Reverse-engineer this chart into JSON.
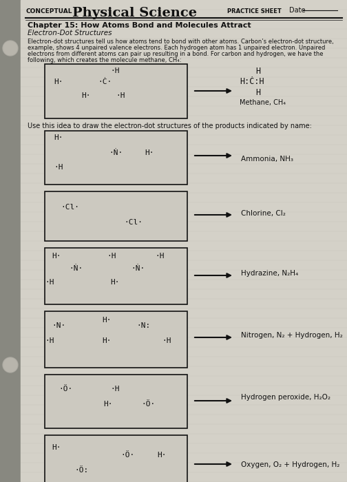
{
  "bg_color": "#c8c5bc",
  "page_color": "#d4d1c8",
  "box_color": "#ccc9c0",
  "box_edge": "#222222",
  "text_color": "#111111",
  "left_bar_color": "#555555",
  "title_conceptual": "CONCEPTUAL",
  "title_main": "Physical Science",
  "title_practice": "PRACTICE SHEET",
  "date_label": "Date",
  "chapter": "Chapter 15: How Atoms Bond and Molecules Attract",
  "subtitle": "Electron-Dot Structures",
  "body_text_line1": "Electron-dot structures tell us how atoms tend to bond with other atoms. Carbon’s electron-dot structure,",
  "body_text_line2": "example, shows 4 unpaired valence electrons. Each hydrogen atom has 1 unpaired electron. Unpaired",
  "body_text_line3": "electrons from different atoms can pair up resulting in a bond. For carbon and hydrogen, we have the",
  "body_text_line4": "following, which creates the molecule methane, CH₄:",
  "use_idea": "Use this idea to draw the electron-dot structures of the products indicated by name:",
  "problem_labels": [
    "Ammonia, NH₃",
    "Chlorine, Cl₂",
    "Hydrazine, N₂H₄",
    "Nitrogen, N₂ + Hydrogen, H₂",
    "Hydrogen peroxide, H₂O₂",
    "Oxygen, O₂ + Hydrogen, H₂"
  ]
}
